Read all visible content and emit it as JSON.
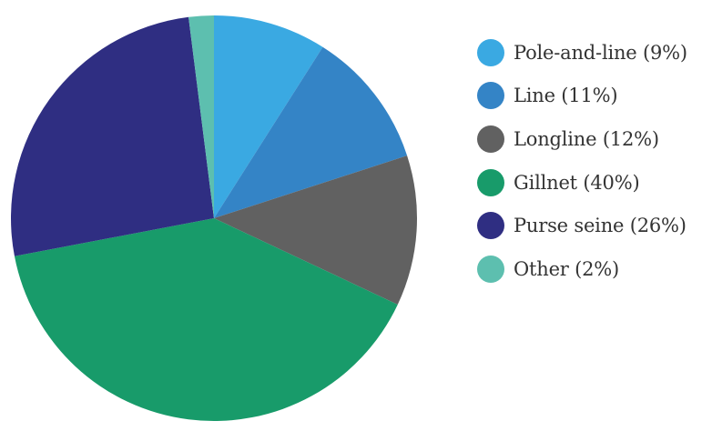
{
  "chart_data": {
    "type": "pie",
    "title": "",
    "legend_position": "right",
    "start_angle_deg": 0,
    "direction": "clockwise",
    "slices": [
      {
        "label": "Pole-and-line (9%)",
        "value": 9,
        "color": "#3AA9E2"
      },
      {
        "label": "Line (11%)",
        "value": 11,
        "color": "#3484C6"
      },
      {
        "label": "Longline (12%)",
        "value": 12,
        "color": "#616161"
      },
      {
        "label": "Gillnet (40%)",
        "value": 40,
        "color": "#189B6A"
      },
      {
        "label": "Purse seine (26%)",
        "value": 26,
        "color": "#2F2E82"
      },
      {
        "label": "Other (2%)",
        "value": 2,
        "color": "#5DBFAF"
      }
    ]
  }
}
